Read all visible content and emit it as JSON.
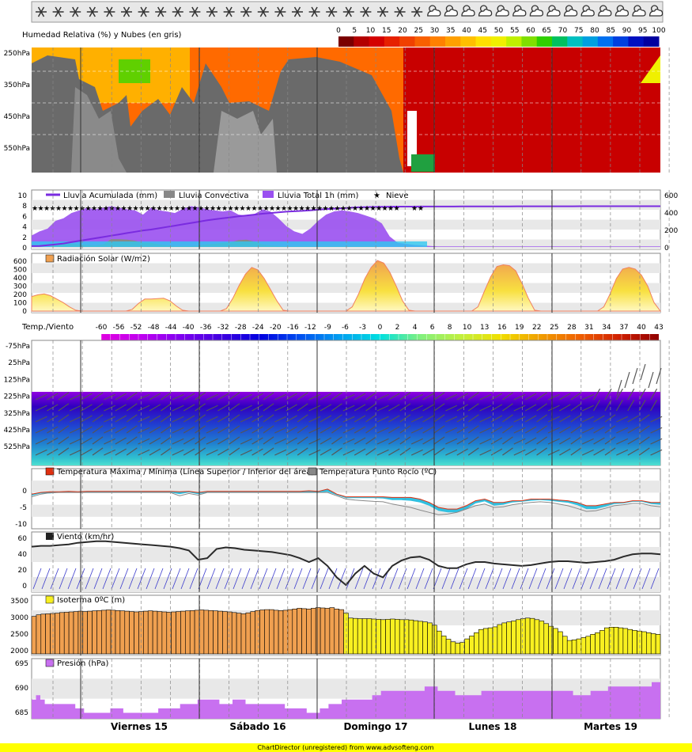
{
  "colors": {
    "humidity_scale": [
      "#7a0000",
      "#b30000",
      "#d40000",
      "#e62000",
      "#f04000",
      "#f86000",
      "#ff8000",
      "#ffa000",
      "#ffc000",
      "#ffe000",
      "#f0f000",
      "#c0f000",
      "#80e000",
      "#30d000",
      "#00c060",
      "#00c0c0",
      "#00a0e0",
      "#0070f0",
      "#0040e0",
      "#0010c0",
      "#0000a0"
    ],
    "cloud": "#6a6a6a",
    "rain_total": "#9a50f0",
    "rain_convective": "#888888",
    "rain_acc": "#7a2be0",
    "radiation": "#f0c040",
    "isotherm_warm": "#f0a050",
    "isotherm_cold": "#f8f020",
    "pressure": "#c870f0",
    "wind_line": "#2a2a2a",
    "wind_barb": "#3a3acc",
    "footer_bg": "#ffff00"
  },
  "icons": [
    "snow-icon",
    "snow-icon",
    "snow-icon",
    "snow-icon",
    "snow-icon",
    "snow-icon",
    "snow-icon",
    "snow-icon",
    "snow-icon",
    "snow-icon",
    "snow-icon",
    "snow-icon",
    "snow-icon",
    "snow-icon",
    "snow-icon",
    "snow-icon",
    "snow-icon",
    "snow-icon",
    "snow-icon",
    "snow-icon",
    "snow-icon",
    "snow-icon",
    "snow-icon",
    "cloud-snow-icon",
    "sun-cloud-icon",
    "sun-cloud-icon",
    "sun-cloud-icon",
    "sun-cloud-icon",
    "sun-cloud-icon",
    "sun-cloud-icon",
    "sun-cloud-icon",
    "sun-cloud-icon",
    "sun-cloud-icon",
    "sun-cloud-icon",
    "sun-cloud-icon",
    "sun-cloud-icon",
    "sun-cloud-icon"
  ],
  "chart_data": [
    {
      "type": "heatmap",
      "title": "Humedad Relativa (%) y Nubes (en gris)",
      "colorbar_ticks": [
        "0",
        "5",
        "10",
        "15",
        "20",
        "25",
        "30",
        "35",
        "40",
        "45",
        "50",
        "55",
        "60",
        "65",
        "70",
        "75",
        "80",
        "85",
        "90",
        "95",
        "100"
      ],
      "yticks": [
        "250hPa",
        "350hPa",
        "450hPa",
        "550hPa"
      ]
    },
    {
      "type": "area",
      "legend": [
        "Lluvia Acumulada (mm)",
        "Lluvia Convectiva",
        "Lluvia Total 1h (mm)",
        "Nieve"
      ],
      "yticks_left": [
        "10",
        "8",
        "6",
        "4",
        "2",
        "0"
      ],
      "yticks_right": [
        "600",
        "400",
        "200",
        "0"
      ],
      "ylim_left": [
        0,
        10
      ],
      "ylim_right": [
        0,
        600
      ],
      "rain_total": [
        2.2,
        3.0,
        3.5,
        5.0,
        5.5,
        6.5,
        7.0,
        7.5,
        7.2,
        7.5,
        7.8,
        7.5,
        7.2,
        7.0,
        6.2,
        7.5,
        7.0,
        6.8,
        6.5,
        7.3,
        7.8,
        7.6,
        7.2,
        7.0,
        6.8,
        7.0,
        6.2,
        6.0,
        6.3,
        7.2,
        6.8,
        5.5,
        4.0,
        3.0,
        2.5,
        3.5,
        5.0,
        6.2,
        6.8,
        7.0,
        6.8,
        6.5,
        6.0,
        5.5,
        4.5,
        2.0,
        0.8,
        0.6,
        0.4,
        0.3,
        0.2,
        0.1,
        0.1,
        0.1,
        0.1,
        0.1,
        0.1,
        0.1,
        0.1,
        0.1,
        0.1,
        0.1,
        0.1,
        0.1,
        0.1,
        0.1,
        0.1,
        0.1,
        0.1,
        0.1,
        0.1,
        0.1,
        0.1,
        0.1,
        0.1,
        0.1,
        0.1,
        0.1,
        0.1,
        0.1
      ],
      "rain_convective": [
        0,
        0,
        0,
        0.3,
        0.5,
        0.6,
        0.5,
        0.4,
        0.3,
        0.5,
        1.5,
        1.5,
        1.4,
        1.2,
        0.8,
        0.8,
        0.5,
        0.3,
        0.2,
        0.2,
        0.2,
        0.3,
        0.5,
        0.6,
        0.8,
        0.9,
        1.3,
        1.4,
        1.0,
        0.5,
        0.3,
        0.2,
        0.1,
        0.1,
        0.1,
        0.1,
        0.1,
        0.1,
        0.1,
        0.1,
        0.1,
        0.1,
        0.1,
        0.1,
        0,
        0,
        0,
        0,
        0,
        0,
        0,
        0,
        0,
        0,
        0,
        0,
        0,
        0,
        0,
        0,
        0,
        0,
        0,
        0,
        0,
        0,
        0,
        0,
        0,
        0,
        0,
        0,
        0,
        0,
        0,
        0,
        0,
        0,
        0,
        0
      ],
      "rain_acc": [
        10,
        12,
        20,
        30,
        40,
        55,
        70,
        85,
        100,
        115,
        130,
        145,
        160,
        175,
        190,
        200,
        215,
        230,
        245,
        260,
        275,
        290,
        305,
        318,
        330,
        340,
        352,
        362,
        372,
        382,
        390,
        398,
        405,
        410,
        415,
        420,
        428,
        435,
        440,
        445,
        450,
        455,
        458,
        460,
        462,
        463,
        464,
        464,
        464,
        465,
        465,
        465,
        465,
        465,
        466,
        466,
        466,
        466,
        466,
        466,
        466,
        467,
        467,
        467,
        467,
        467,
        467,
        467,
        467,
        468,
        468,
        468,
        468,
        468,
        468,
        468,
        468,
        468,
        468,
        468
      ],
      "snow_marks": "Nieve"
    },
    {
      "type": "area",
      "legend": "Radiación Solar (W/m2)",
      "yticks": [
        "600",
        "500",
        "400",
        "300",
        "200",
        "100",
        "0"
      ],
      "ylim": [
        0,
        600
      ],
      "values": [
        170,
        190,
        200,
        180,
        140,
        100,
        50,
        10,
        0,
        0,
        0,
        0,
        0,
        0,
        0,
        0,
        20,
        90,
        140,
        140,
        145,
        150,
        120,
        60,
        10,
        0,
        0,
        0,
        0,
        0,
        0,
        30,
        150,
        300,
        430,
        510,
        480,
        380,
        250,
        120,
        10,
        0,
        0,
        0,
        0,
        0,
        0,
        0,
        0,
        0,
        0,
        50,
        200,
        380,
        510,
        590,
        560,
        450,
        290,
        120,
        10,
        0,
        0,
        0,
        0,
        0,
        0,
        0,
        0,
        0,
        0,
        50,
        230,
        400,
        520,
        540,
        530,
        470,
        320,
        150,
        10,
        0,
        0,
        0,
        0,
        0,
        0,
        0,
        0,
        0,
        0,
        50,
        200,
        380,
        490,
        510,
        490,
        420,
        290,
        100,
        0
      ]
    },
    {
      "type": "heatmap",
      "title": "Temp./Viento",
      "colorbar_ticks": [
        "-60",
        "-56",
        "-52",
        "-48",
        "-44",
        "-40",
        "-36",
        "-32",
        "-28",
        "-24",
        "-20",
        "-16",
        "-12",
        "-9",
        "-6",
        "-3",
        "0",
        "2",
        "4",
        "6",
        "8",
        "10",
        "13",
        "16",
        "19",
        "22",
        "25",
        "28",
        "31",
        "34",
        "37",
        "40",
        "43"
      ],
      "yticks": [
        "-75hPa",
        "25hPa",
        "125hPa",
        "225hPa",
        "325hPa",
        "425hPa",
        "525hPa"
      ]
    },
    {
      "type": "line",
      "legend": [
        "Temperatura Máxima / Mínima (Línea Superior / Inferior del área)",
        "Temperatura Punto Rocío (ºC)"
      ],
      "yticks": [
        "0",
        "-5",
        "-10"
      ],
      "ylim": [
        -10,
        2
      ],
      "tmax": [
        -1.0,
        -0.5,
        -0.3,
        -0.3,
        -0.2,
        -0.3,
        -0.2,
        -0.2,
        -0.2,
        -0.2,
        -0.2,
        -0.2,
        -0.2,
        -0.2,
        -0.2,
        -0.2,
        -0.3,
        -0.2,
        -0.5,
        -0.2,
        -0.2,
        -0.2,
        -0.2,
        -0.2,
        -0.2,
        -0.2,
        -0.2,
        -0.2,
        -0.2,
        -0.2,
        0.0,
        -0.2,
        0.5,
        -1.0,
        -1.8,
        -1.8,
        -1.8,
        -1.8,
        -1.8,
        -2.0,
        -2.0,
        -2.0,
        -2.5,
        -3.5,
        -5.0,
        -5.5,
        -5.5,
        -4.5,
        -3.0,
        -2.5,
        -3.5,
        -3.5,
        -3.0,
        -3.0,
        -2.5,
        -2.5,
        -2.5,
        -2.8,
        -3.0,
        -3.5,
        -4.5,
        -4.5,
        -4.0,
        -3.5,
        -3.5,
        -3.0,
        -3.0,
        -3.5,
        -3.5
      ],
      "tmin": [
        -1.5,
        -0.8,
        -0.8,
        -0.5,
        -0.5,
        -0.5,
        -0.5,
        -0.5,
        -0.5,
        -0.5,
        -0.5,
        -0.5,
        -0.5,
        -0.5,
        -0.5,
        -0.5,
        -1.0,
        -0.5,
        -1.0,
        -0.5,
        -0.5,
        -0.5,
        -0.5,
        -0.5,
        -0.5,
        -0.5,
        -0.5,
        -0.5,
        -0.5,
        -0.5,
        -0.5,
        -0.5,
        -0.3,
        -1.3,
        -2.2,
        -2.2,
        -2.2,
        -2.2,
        -2.3,
        -2.8,
        -2.8,
        -3.0,
        -3.5,
        -4.5,
        -6.0,
        -6.5,
        -6.5,
        -5.5,
        -3.8,
        -3.2,
        -4.5,
        -4.2,
        -3.5,
        -3.3,
        -3.0,
        -2.8,
        -3.0,
        -3.3,
        -3.6,
        -4.3,
        -5.5,
        -5.5,
        -4.8,
        -4.0,
        -3.8,
        -3.3,
        -3.3,
        -4.0,
        -4.2
      ],
      "dewpoint": [
        -1.8,
        -1.0,
        -0.6,
        -0.5,
        -0.5,
        -0.5,
        -0.5,
        -0.5,
        -0.5,
        -0.5,
        -0.5,
        -0.5,
        -0.5,
        -0.5,
        -0.5,
        -0.5,
        -1.5,
        -0.8,
        -1.3,
        -0.5,
        -0.5,
        -0.5,
        -0.5,
        -0.5,
        -0.5,
        -0.5,
        -0.5,
        -0.5,
        -0.5,
        -0.5,
        -0.5,
        -0.5,
        -0.5,
        -1.5,
        -2.5,
        -2.8,
        -3.0,
        -3.2,
        -3.3,
        -4.0,
        -4.5,
        -5.0,
        -5.8,
        -6.5,
        -7.2,
        -7.0,
        -6.5,
        -5.5,
        -4.5,
        -4.0,
        -5.0,
        -4.8,
        -4.2,
        -3.8,
        -3.5,
        -3.3,
        -3.5,
        -4.0,
        -4.5,
        -5.3,
        -6.2,
        -6.0,
        -5.3,
        -4.5,
        -4.2,
        -3.8,
        -3.8,
        -4.5,
        -4.8
      ]
    },
    {
      "type": "line",
      "legend": "Viento (km/hr)",
      "yticks": [
        "60",
        "40",
        "20",
        "0"
      ],
      "ylim": [
        0,
        70
      ],
      "values": [
        55,
        56,
        56,
        57,
        58,
        60,
        61,
        62,
        62,
        61,
        60,
        59,
        58,
        57,
        56,
        55,
        53,
        50,
        38,
        40,
        52,
        54,
        53,
        51,
        50,
        49,
        48,
        46,
        44,
        40,
        35,
        40,
        30,
        15,
        5,
        20,
        30,
        20,
        15,
        30,
        37,
        41,
        42,
        38,
        30,
        27,
        27,
        32,
        35,
        35,
        33,
        32,
        31,
        30,
        31,
        33,
        35,
        36,
        36,
        35,
        34,
        35,
        36,
        38,
        42,
        45,
        46,
        46,
        45
      ],
      "barb_dir_deg": 30
    },
    {
      "type": "bar",
      "legend": "Isoterma 0ºC (m)",
      "yticks": [
        "3500",
        "3000",
        "2500",
        "2000"
      ],
      "ylim": [
        1900,
        3700
      ],
      "values": [
        3050,
        3100,
        3120,
        3130,
        3140,
        3150,
        3170,
        3180,
        3190,
        3200,
        3210,
        3200,
        3210,
        3220,
        3230,
        3240,
        3250,
        3240,
        3230,
        3220,
        3210,
        3200,
        3190,
        3200,
        3210,
        3220,
        3210,
        3200,
        3190,
        3180,
        3190,
        3200,
        3210,
        3220,
        3230,
        3240,
        3250,
        3240,
        3230,
        3220,
        3210,
        3200,
        3190,
        3170,
        3150,
        3130,
        3160,
        3200,
        3230,
        3250,
        3260,
        3260,
        3240,
        3230,
        3240,
        3260,
        3280,
        3300,
        3290,
        3280,
        3300,
        3320,
        3310,
        3300,
        3320,
        3280,
        3260,
        3150,
        3000,
        2990,
        2980,
        2980,
        2980,
        2970,
        2960,
        2950,
        2960,
        2970,
        2960,
        2950,
        2950,
        2940,
        2920,
        2900,
        2880,
        2850,
        2780,
        2600,
        2450,
        2350,
        2270,
        2230,
        2250,
        2360,
        2450,
        2550,
        2650,
        2680,
        2700,
        2730,
        2800,
        2850,
        2880,
        2910,
        2950,
        2980,
        3000,
        2990,
        2950,
        2910,
        2830,
        2750,
        2680,
        2580,
        2440,
        2310,
        2330,
        2360,
        2400,
        2440,
        2500,
        2550,
        2620,
        2700,
        2720,
        2720,
        2700,
        2680,
        2650,
        2620,
        2600,
        2580,
        2550,
        2520,
        2500
      ]
    },
    {
      "type": "area",
      "legend": "Presión (hPa)",
      "yticks": [
        "695",
        "690",
        "685"
      ],
      "ylim": [
        684,
        697
      ],
      "values": [
        688,
        689,
        688,
        687,
        687,
        687,
        687,
        687,
        687,
        687,
        686,
        686,
        685,
        685,
        685,
        685,
        685,
        685,
        686,
        686,
        686,
        685,
        685,
        685,
        685,
        685,
        685,
        685,
        685,
        686,
        686,
        686,
        686,
        686,
        687,
        687,
        687,
        687,
        688,
        688,
        688,
        688,
        688,
        687,
        687,
        687,
        688,
        688,
        688,
        687,
        687,
        687,
        687,
        687,
        687,
        687,
        687,
        687,
        686,
        686,
        686,
        686,
        686,
        685,
        685,
        685,
        686,
        686,
        687,
        687,
        687,
        688,
        688,
        688,
        688,
        688,
        688,
        688,
        689,
        689,
        690,
        690,
        690,
        690,
        690,
        690,
        690,
        690,
        690,
        690,
        691,
        691,
        691,
        690,
        690,
        690,
        690,
        689,
        689,
        689,
        689,
        689,
        689,
        690,
        690,
        690,
        690,
        690,
        690,
        690,
        690,
        690,
        690,
        690,
        690,
        690,
        690,
        690,
        690,
        690,
        690,
        690,
        690,
        690,
        689,
        689,
        689,
        689,
        690,
        690,
        690,
        690,
        691,
        691,
        691,
        691,
        691,
        691,
        691,
        691,
        691,
        691,
        692,
        692
      ]
    }
  ],
  "days": [
    "Viernes 15",
    "Sábado 16",
    "Domingo 17",
    "Lunes 18",
    "Martes 19"
  ],
  "footer": "ChartDirector (unregistered) from www.advsofteng.com"
}
